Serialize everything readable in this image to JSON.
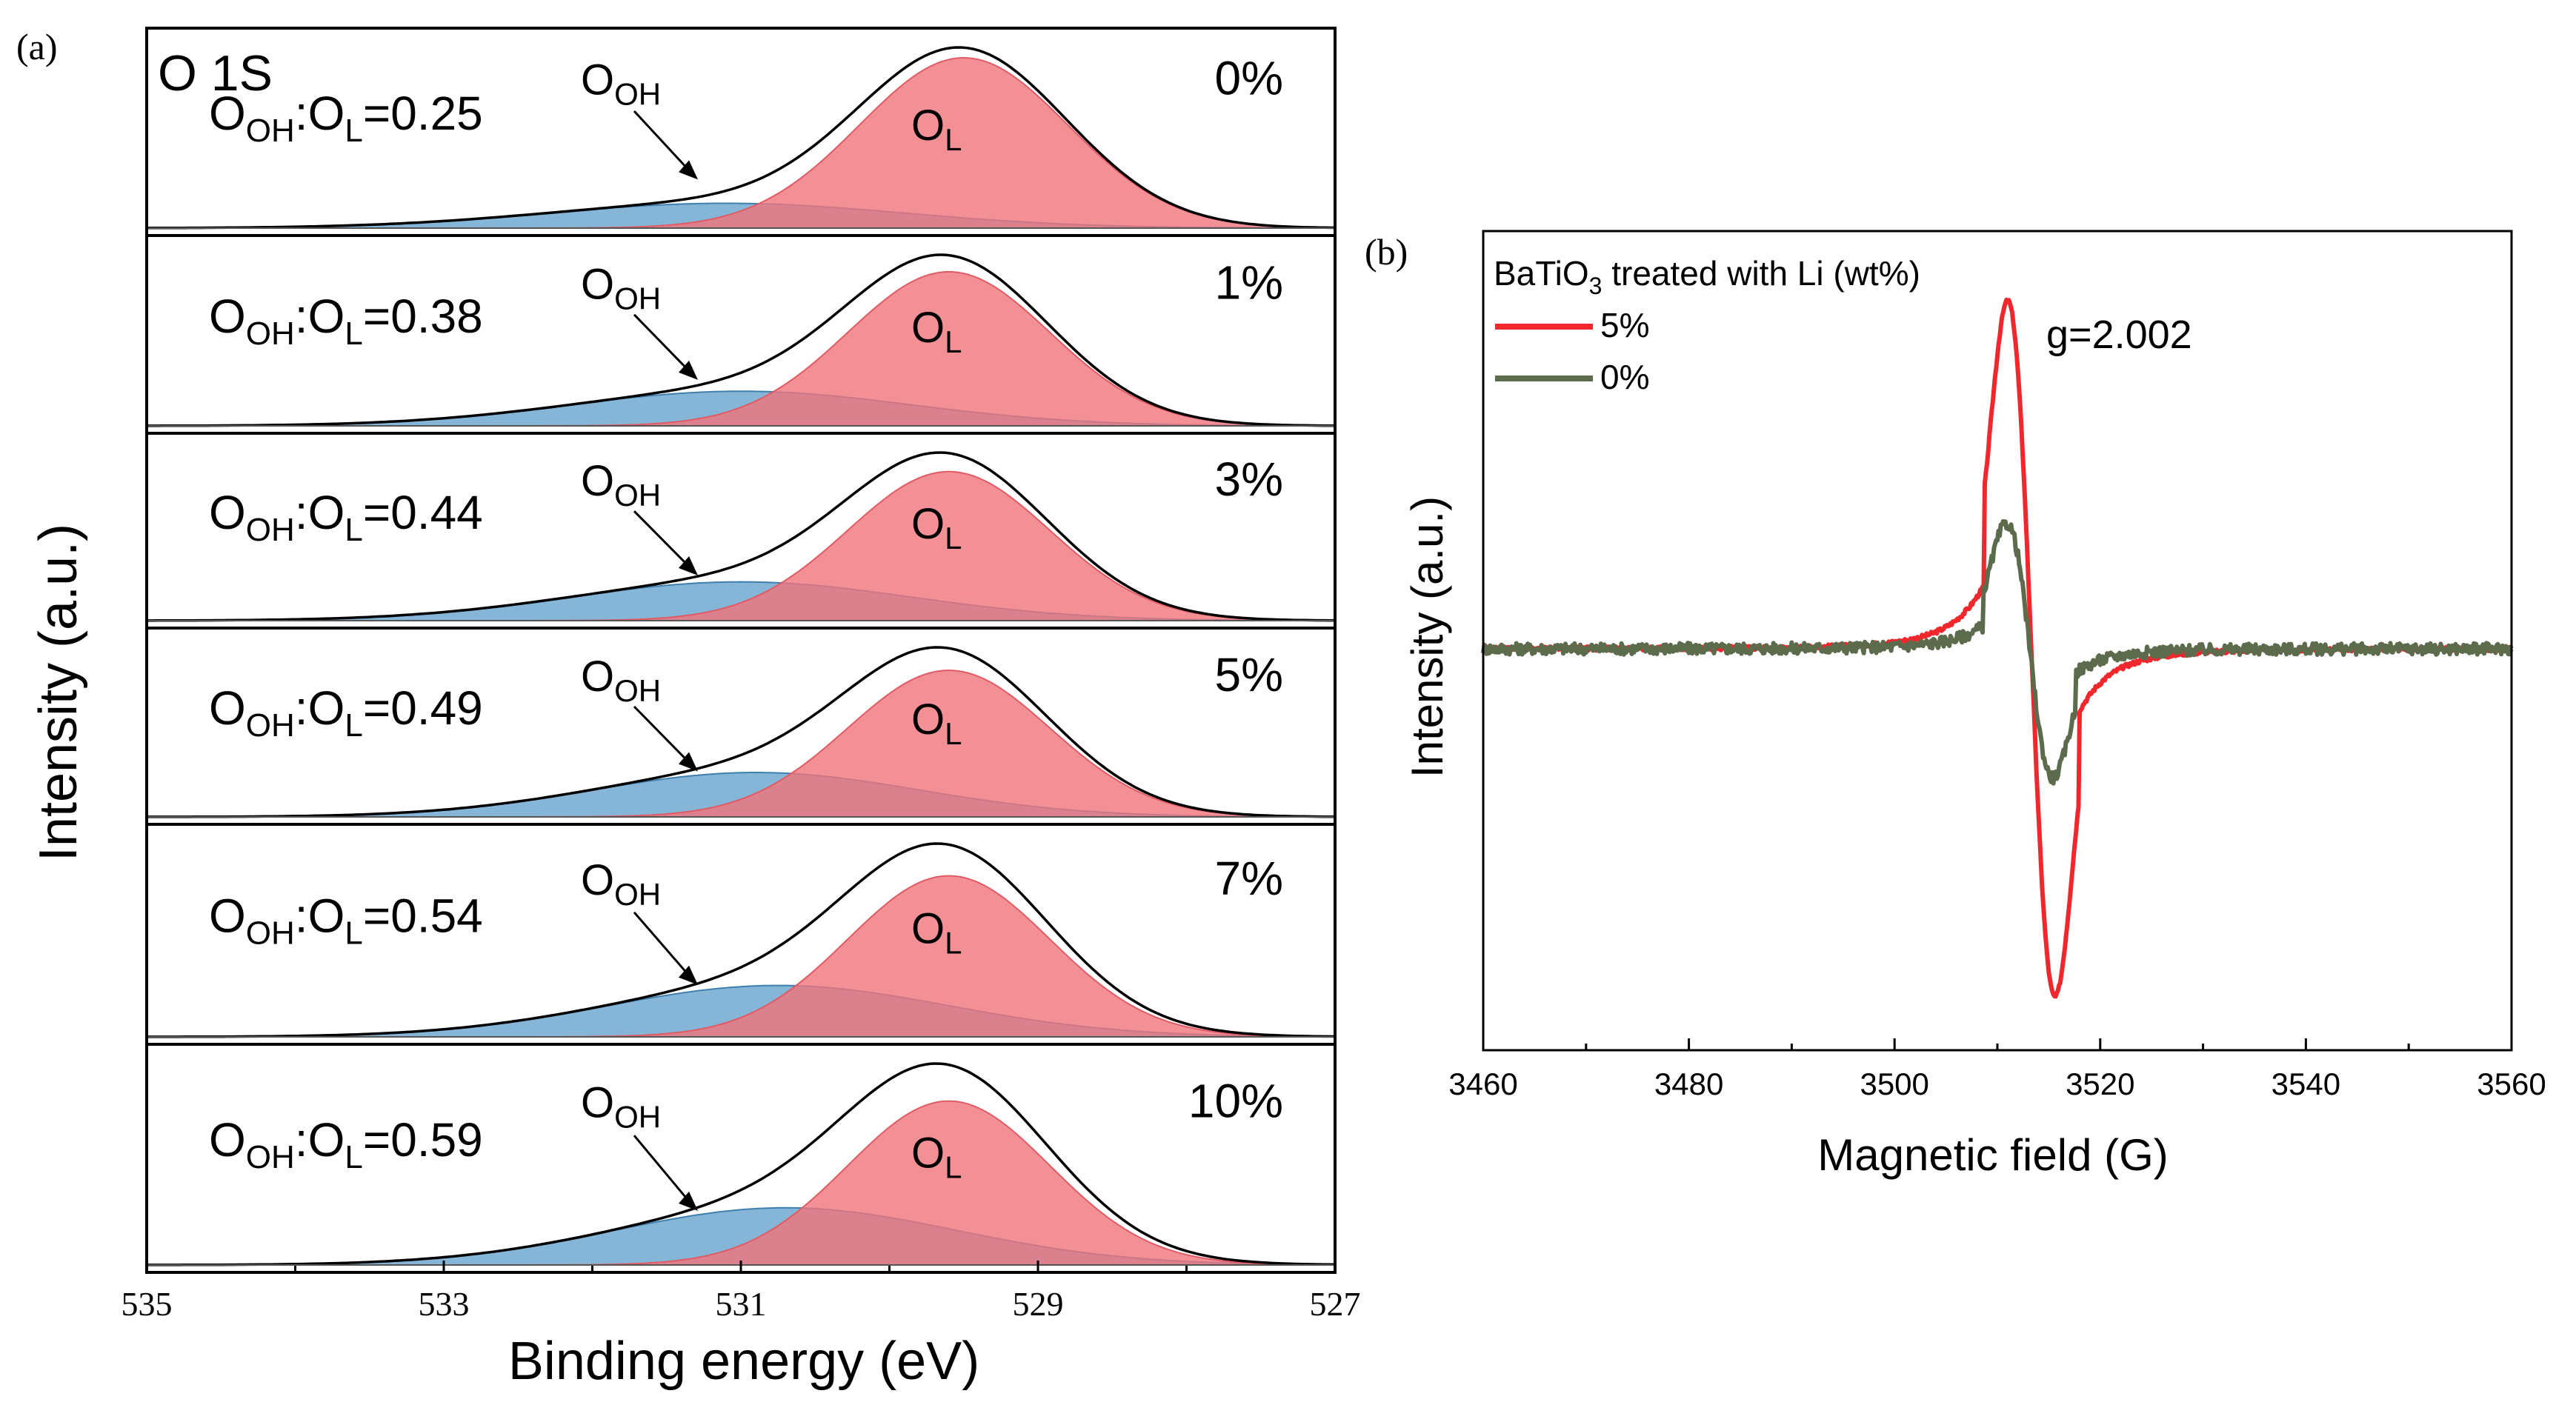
{
  "chart_data": [
    {
      "panel_label": "(a)",
      "type": "area",
      "title": "O 1S",
      "xlabel": "Binding energy (eV)",
      "ylabel": "Intensity (a.u.)",
      "xlim": [
        535,
        527
      ],
      "x_ticks": [
        "535",
        "533",
        "531",
        "529",
        "527"
      ],
      "colors": {
        "O_L": "#f0747c",
        "O_OH": "#5d9ec9",
        "envelope": "#000000"
      },
      "subplots": [
        {
          "li_label": "0%",
          "ratio_prefix": "O",
          "ratio_sub1": "OH",
          "ratio_colon": ":O",
          "ratio_sub2": "L",
          "ratio_value": "=0.25",
          "peak_oh_label": "O",
          "peak_oh_sub": "OH",
          "peak_l_label": "O",
          "peak_l_sub": "L",
          "ratio": 0.25,
          "ol_center": 529.5,
          "ol_sigma": 0.7,
          "ol_amp": 0.98,
          "oh_center": 531.1,
          "oh_sigma": 1.2
        },
        {
          "li_label": "1%",
          "ratio_prefix": "O",
          "ratio_sub1": "OH",
          "ratio_colon": ":O",
          "ratio_sub2": "L",
          "ratio_value": "=0.38",
          "peak_oh_label": "O",
          "peak_oh_sub": "OH",
          "peak_l_label": "O",
          "peak_l_sub": "L",
          "ratio": 0.38,
          "ol_center": 529.6,
          "ol_sigma": 0.68,
          "ol_amp": 0.9,
          "oh_center": 531.0,
          "oh_sigma": 1.15
        },
        {
          "li_label": "3%",
          "ratio_prefix": "O",
          "ratio_sub1": "OH",
          "ratio_colon": ":O",
          "ratio_sub2": "L",
          "ratio_value": "=0.44",
          "peak_oh_label": "O",
          "peak_oh_sub": "OH",
          "peak_l_label": "O",
          "peak_l_sub": "L",
          "ratio": 0.44,
          "ol_center": 529.6,
          "ol_sigma": 0.68,
          "ol_amp": 0.86,
          "oh_center": 531.0,
          "oh_sigma": 1.15
        },
        {
          "li_label": "5%",
          "ratio_prefix": "O",
          "ratio_sub1": "OH",
          "ratio_colon": ":O",
          "ratio_sub2": "L",
          "ratio_value": "=0.49",
          "peak_oh_label": "O",
          "peak_oh_sub": "OH",
          "peak_l_label": "O",
          "peak_l_sub": "L",
          "ratio": 0.49,
          "ol_center": 529.6,
          "ol_sigma": 0.68,
          "ol_amp": 0.84,
          "oh_center": 530.9,
          "oh_sigma": 1.1
        },
        {
          "li_label": "7%",
          "ratio_prefix": "O",
          "ratio_sub1": "OH",
          "ratio_colon": ":O",
          "ratio_sub2": "L",
          "ratio_value": "=0.54",
          "peak_oh_label": "O",
          "peak_oh_sub": "OH",
          "peak_l_label": "O",
          "peak_l_sub": "L",
          "ratio": 0.54,
          "ol_center": 529.6,
          "ol_sigma": 0.68,
          "ol_amp": 0.82,
          "oh_center": 530.75,
          "oh_sigma": 1.15
        },
        {
          "li_label": "10%",
          "ratio_prefix": "O",
          "ratio_sub1": "OH",
          "ratio_colon": ":O",
          "ratio_sub2": "L",
          "ratio_value": "=0.59",
          "peak_oh_label": "O",
          "peak_oh_sub": "OH",
          "peak_l_label": "O",
          "peak_l_sub": "L",
          "ratio": 0.59,
          "ol_center": 529.6,
          "ol_sigma": 0.68,
          "ol_amp": 0.8,
          "oh_center": 530.7,
          "oh_sigma": 1.15
        }
      ]
    },
    {
      "panel_label": "(b)",
      "type": "line",
      "xlabel": "Magnetic field (G)",
      "ylabel": "Intensity (a.u.)",
      "xlim": [
        3460,
        3560
      ],
      "x_ticks": [
        "3460",
        "3480",
        "3500",
        "3520",
        "3540",
        "3560"
      ],
      "legend_title_pre": "BaTiO",
      "legend_title_sub": "3",
      "legend_title_post": " treated with Li (wt%)",
      "legend_position": "top-left",
      "annotation": "g=2.002",
      "series": [
        {
          "name": "5%",
          "color": "#f0282d",
          "peak_x": 3511.0,
          "trough_x": 3515.6,
          "max": 1.0,
          "min": -1.0
        },
        {
          "name": "0%",
          "color": "#5b6b4b",
          "peak_x": 3510.9,
          "trough_x": 3515.4,
          "max": 0.36,
          "min": -0.37
        }
      ]
    }
  ]
}
